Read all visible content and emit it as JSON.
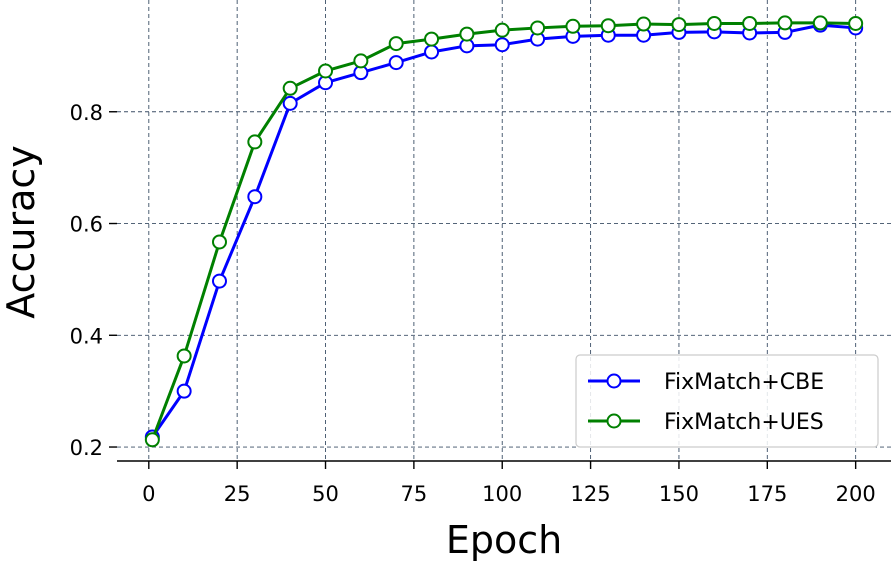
{
  "chart_data": {
    "type": "line",
    "xlabel": "Epoch",
    "ylabel": "Accuracy",
    "xlim": [
      -9,
      210
    ],
    "ylim": [
      0.175,
      1.0
    ],
    "xticks": [
      0,
      25,
      50,
      75,
      100,
      125,
      150,
      175,
      200
    ],
    "yticks": [
      0.2,
      0.4,
      0.6,
      0.8
    ],
    "ytick_labels": [
      "0.2",
      "0.4",
      "0.6",
      "0.8"
    ],
    "grid": true,
    "legend_position": "lower-right",
    "x": [
      1,
      10,
      20,
      30,
      40,
      50,
      60,
      70,
      80,
      90,
      100,
      110,
      120,
      130,
      140,
      150,
      160,
      170,
      180,
      190,
      200
    ],
    "series": [
      {
        "name": "FixMatch+CBE",
        "color": "#0000ff",
        "values": [
          0.218,
          0.3,
          0.497,
          0.648,
          0.815,
          0.852,
          0.87,
          0.888,
          0.907,
          0.918,
          0.92,
          0.93,
          0.935,
          0.937,
          0.937,
          0.942,
          0.943,
          0.941,
          0.942,
          0.955,
          0.95
        ]
      },
      {
        "name": "FixMatch+UES",
        "color": "#008000",
        "values": [
          0.213,
          0.363,
          0.567,
          0.746,
          0.842,
          0.873,
          0.891,
          0.922,
          0.93,
          0.939,
          0.946,
          0.95,
          0.953,
          0.954,
          0.957,
          0.956,
          0.958,
          0.958,
          0.959,
          0.959,
          0.958
        ]
      }
    ]
  }
}
